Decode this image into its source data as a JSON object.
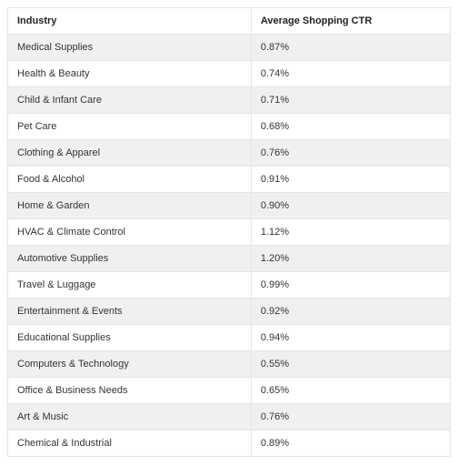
{
  "table": {
    "type": "table",
    "background_color": "#ffffff",
    "border_color": "#e5e5e5",
    "stripe_color": "#f0f0f0",
    "header_fontsize": 11,
    "cell_fontsize": 11,
    "text_color": "#333333",
    "header_text_color": "#222222",
    "columns": [
      {
        "label": "Industry",
        "width_pct": 55,
        "align": "left"
      },
      {
        "label": "Average Shopping CTR",
        "width_pct": 45,
        "align": "left"
      }
    ],
    "rows": [
      {
        "industry": "Medical Supplies",
        "ctr": "0.87%"
      },
      {
        "industry": "Health & Beauty",
        "ctr": "0.74%"
      },
      {
        "industry": "Child & Infant Care",
        "ctr": "0.71%"
      },
      {
        "industry": "Pet Care",
        "ctr": "0.68%"
      },
      {
        "industry": "Clothing & Apparel",
        "ctr": "0.76%"
      },
      {
        "industry": "Food & Alcohol",
        "ctr": "0.91%"
      },
      {
        "industry": "Home & Garden",
        "ctr": "0.90%"
      },
      {
        "industry": "HVAC & Climate Control",
        "ctr": "1.12%"
      },
      {
        "industry": "Automotive Supplies",
        "ctr": "1.20%"
      },
      {
        "industry": "Travel & Luggage",
        "ctr": "0.99%"
      },
      {
        "industry": "Entertainment & Events",
        "ctr": "0.92%"
      },
      {
        "industry": "Educational Supplies",
        "ctr": "0.94%"
      },
      {
        "industry": "Computers & Technology",
        "ctr": "0.55%"
      },
      {
        "industry": "Office & Business Needs",
        "ctr": "0.65%"
      },
      {
        "industry": "Art & Music",
        "ctr": "0.76%"
      },
      {
        "industry": "Chemical & Industrial",
        "ctr": "0.89%"
      }
    ]
  }
}
